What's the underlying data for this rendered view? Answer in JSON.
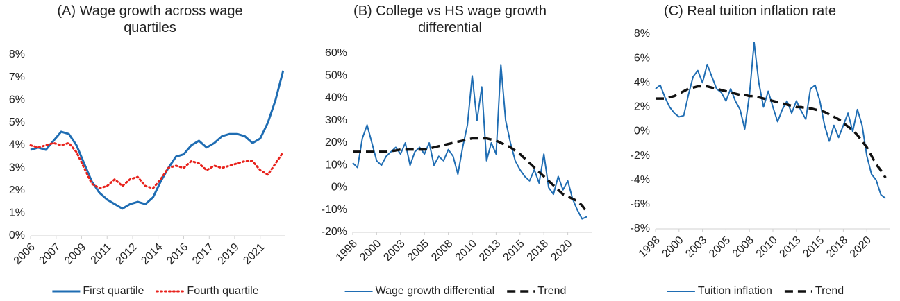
{
  "chart_data": [
    {
      "type": "line",
      "title": "(A) Wage growth across wage quartiles",
      "x": [
        2006,
        2006.5,
        2007,
        2007.5,
        2008,
        2008.5,
        2009,
        2009.5,
        2010,
        2010.5,
        2011,
        2011.5,
        2012,
        2012.5,
        2013,
        2013.5,
        2014,
        2014.5,
        2015,
        2015.5,
        2016,
        2016.5,
        2017,
        2017.5,
        2018,
        2018.5,
        2019,
        2019.5,
        2020,
        2020.5,
        2021,
        2021.5,
        2022,
        2022.5
      ],
      "series": [
        {
          "name": "First quartile",
          "color": "#1f6db3",
          "dash": "solid",
          "width": 3,
          "values": [
            3.8,
            3.9,
            3.8,
            4.2,
            4.6,
            4.5,
            4.0,
            3.2,
            2.4,
            1.9,
            1.6,
            1.4,
            1.2,
            1.4,
            1.5,
            1.4,
            1.7,
            2.4,
            3.0,
            3.5,
            3.6,
            4.0,
            4.2,
            3.9,
            4.1,
            4.4,
            4.5,
            4.5,
            4.4,
            4.1,
            4.3,
            5.0,
            6.0,
            7.3
          ]
        },
        {
          "name": "Fourth quartile",
          "color": "#e8221c",
          "dash": "dotted",
          "width": 3,
          "values": [
            4.0,
            3.9,
            4.0,
            4.1,
            4.0,
            4.1,
            3.7,
            3.0,
            2.3,
            2.1,
            2.2,
            2.5,
            2.2,
            2.5,
            2.6,
            2.2,
            2.1,
            2.5,
            3.0,
            3.1,
            3.0,
            3.3,
            3.2,
            2.9,
            3.1,
            3.0,
            3.1,
            3.2,
            3.3,
            3.3,
            2.9,
            2.7,
            3.2,
            3.7
          ]
        }
      ],
      "xlim": [
        2006,
        2022.6
      ],
      "xticks": [
        {
          "value": 2006,
          "label": "2006"
        },
        {
          "value": 2007.67,
          "label": "2007"
        },
        {
          "value": 2009.33,
          "label": "2009"
        },
        {
          "value": 2011,
          "label": "2011"
        },
        {
          "value": 2012.67,
          "label": "2012"
        },
        {
          "value": 2014.33,
          "label": "2014"
        },
        {
          "value": 2016,
          "label": "2016"
        },
        {
          "value": 2017.67,
          "label": "2017"
        },
        {
          "value": 2019.33,
          "label": "2019"
        },
        {
          "value": 2021,
          "label": "2021"
        }
      ],
      "ylim": [
        0,
        8
      ],
      "yticks": [
        {
          "value": 0,
          "label": "0%"
        },
        {
          "value": 1,
          "label": "1%"
        },
        {
          "value": 2,
          "label": "2%"
        },
        {
          "value": 3,
          "label": "3%"
        },
        {
          "value": 4,
          "label": "4%"
        },
        {
          "value": 5,
          "label": "5%"
        },
        {
          "value": 6,
          "label": "6%"
        },
        {
          "value": 7,
          "label": "7%"
        },
        {
          "value": 8,
          "label": "8%"
        }
      ],
      "grid": false,
      "legend": "bottom"
    },
    {
      "type": "line",
      "title": "(B) College vs HS wage growth differential",
      "x": [
        1998,
        1998.5,
        1999,
        1999.5,
        2000,
        2000.5,
        2001,
        2001.5,
        2002,
        2002.5,
        2003,
        2003.5,
        2004,
        2004.5,
        2005,
        2005.5,
        2006,
        2006.5,
        2007,
        2007.5,
        2008,
        2008.5,
        2009,
        2009.5,
        2010,
        2010.5,
        2011,
        2011.5,
        2012,
        2012.5,
        2013,
        2013.5,
        2014,
        2014.5,
        2015,
        2015.5,
        2016,
        2016.5,
        2017,
        2017.5,
        2018,
        2018.5,
        2019,
        2019.5,
        2020,
        2020.5,
        2021,
        2021.5,
        2022,
        2022.5
      ],
      "series": [
        {
          "name": "Wage growth differential",
          "color": "#1f6db3",
          "dash": "solid",
          "width": 2,
          "values": [
            11,
            9,
            22,
            28,
            20,
            12,
            10,
            14,
            16,
            18,
            15,
            20,
            10,
            16,
            18,
            15,
            20,
            10,
            14,
            12,
            17,
            14,
            6,
            18,
            28,
            50,
            30,
            45,
            12,
            20,
            15,
            55,
            30,
            20,
            12,
            8,
            5,
            3,
            8,
            2,
            15,
            0,
            -3,
            5,
            -1,
            3,
            -5,
            -10,
            -14,
            -13
          ]
        },
        {
          "name": "Trend",
          "color": "#111111",
          "dash": "dashed",
          "width": 3.5,
          "values": [
            16,
            16,
            16,
            16,
            16,
            16,
            16,
            16,
            16.3,
            16.6,
            17,
            17,
            17,
            17,
            17,
            17,
            17.5,
            18,
            18.5,
            19,
            19.5,
            20,
            20.5,
            21,
            21.5,
            22,
            22,
            22,
            22,
            21.5,
            21,
            20,
            19,
            18,
            16.5,
            15,
            13,
            11,
            9,
            7,
            5,
            3,
            1,
            -1,
            -3,
            -4,
            -5,
            -6,
            -8,
            -11
          ]
        }
      ],
      "xlim": [
        1998,
        2023
      ],
      "xticks": [
        {
          "value": 1998,
          "label": "1998"
        },
        {
          "value": 2000.5,
          "label": "2000"
        },
        {
          "value": 2003,
          "label": "2003"
        },
        {
          "value": 2005.5,
          "label": "2005"
        },
        {
          "value": 2008,
          "label": "2008"
        },
        {
          "value": 2010.5,
          "label": "2010"
        },
        {
          "value": 2013,
          "label": "2013"
        },
        {
          "value": 2015.5,
          "label": "2015"
        },
        {
          "value": 2018,
          "label": "2018"
        },
        {
          "value": 2020.5,
          "label": "2020"
        }
      ],
      "ylim": [
        -20,
        60
      ],
      "yticks": [
        {
          "value": -20,
          "label": "-20%"
        },
        {
          "value": -10,
          "label": "-10%"
        },
        {
          "value": 0,
          "label": "0%"
        },
        {
          "value": 10,
          "label": "10%"
        },
        {
          "value": 20,
          "label": "20%"
        },
        {
          "value": 30,
          "label": "30%"
        },
        {
          "value": 40,
          "label": "40%"
        },
        {
          "value": 50,
          "label": "50%"
        },
        {
          "value": 60,
          "label": "60%"
        }
      ],
      "grid": false,
      "legend": "bottom"
    },
    {
      "type": "line",
      "title": "(C) Real tuition inflation rate",
      "x": [
        1998,
        1998.5,
        1999,
        1999.5,
        2000,
        2000.5,
        2001,
        2001.5,
        2002,
        2002.5,
        2003,
        2003.5,
        2004,
        2004.5,
        2005,
        2005.5,
        2006,
        2006.5,
        2007,
        2007.5,
        2008,
        2008.5,
        2009,
        2009.5,
        2010,
        2010.5,
        2011,
        2011.5,
        2012,
        2012.5,
        2013,
        2013.5,
        2014,
        2014.5,
        2015,
        2015.5,
        2016,
        2016.5,
        2017,
        2017.5,
        2018,
        2018.5,
        2019,
        2019.5,
        2020,
        2020.5,
        2021,
        2021.5,
        2022,
        2022.5
      ],
      "series": [
        {
          "name": "Tuition inflation",
          "color": "#1f6db3",
          "dash": "solid",
          "width": 2,
          "values": [
            3.5,
            3.8,
            2.8,
            2.0,
            1.5,
            1.2,
            1.3,
            3.0,
            4.5,
            5.0,
            4.0,
            5.5,
            4.5,
            3.5,
            3.2,
            2.5,
            3.5,
            2.5,
            1.8,
            0.2,
            3.0,
            7.3,
            4.0,
            2.0,
            3.3,
            2.0,
            0.8,
            1.8,
            2.5,
            1.5,
            2.5,
            1.7,
            1.0,
            3.5,
            3.8,
            2.5,
            0.5,
            -0.8,
            0.5,
            -0.5,
            0.5,
            1.5,
            0.0,
            1.8,
            0.5,
            -2.0,
            -3.5,
            -4.0,
            -5.2,
            -5.5
          ]
        },
        {
          "name": "Trend",
          "color": "#111111",
          "dash": "dashed",
          "width": 3.5,
          "values": [
            2.7,
            2.7,
            2.7,
            2.8,
            2.9,
            3.1,
            3.3,
            3.5,
            3.6,
            3.7,
            3.7,
            3.7,
            3.6,
            3.5,
            3.4,
            3.3,
            3.2,
            3.1,
            3.0,
            3.0,
            2.9,
            2.9,
            2.8,
            2.7,
            2.6,
            2.5,
            2.4,
            2.3,
            2.2,
            2.1,
            2.0,
            2.0,
            1.9,
            1.9,
            1.8,
            1.7,
            1.6,
            1.4,
            1.2,
            1.0,
            0.7,
            0.4,
            0.1,
            -0.3,
            -0.8,
            -1.3,
            -2.0,
            -2.7,
            -3.2,
            -3.8
          ]
        }
      ],
      "xlim": [
        1998,
        2023
      ],
      "xticks": [
        {
          "value": 1998,
          "label": "1998"
        },
        {
          "value": 2000.5,
          "label": "2000"
        },
        {
          "value": 2003,
          "label": "2003"
        },
        {
          "value": 2005.5,
          "label": "2005"
        },
        {
          "value": 2008,
          "label": "2008"
        },
        {
          "value": 2010.5,
          "label": "2010"
        },
        {
          "value": 2013,
          "label": "2013"
        },
        {
          "value": 2015.5,
          "label": "2015"
        },
        {
          "value": 2018,
          "label": "2018"
        },
        {
          "value": 2020.5,
          "label": "2020"
        }
      ],
      "ylim": [
        -8,
        8
      ],
      "yticks": [
        {
          "value": -8,
          "label": "-8%"
        },
        {
          "value": -6,
          "label": "-6%"
        },
        {
          "value": -4,
          "label": "-4%"
        },
        {
          "value": -2,
          "label": "-2%"
        },
        {
          "value": 0,
          "label": "0%"
        },
        {
          "value": 2,
          "label": "2%"
        },
        {
          "value": 4,
          "label": "4%"
        },
        {
          "value": 6,
          "label": "6%"
        },
        {
          "value": 8,
          "label": "8%"
        }
      ],
      "grid": false,
      "legend": "bottom"
    }
  ]
}
